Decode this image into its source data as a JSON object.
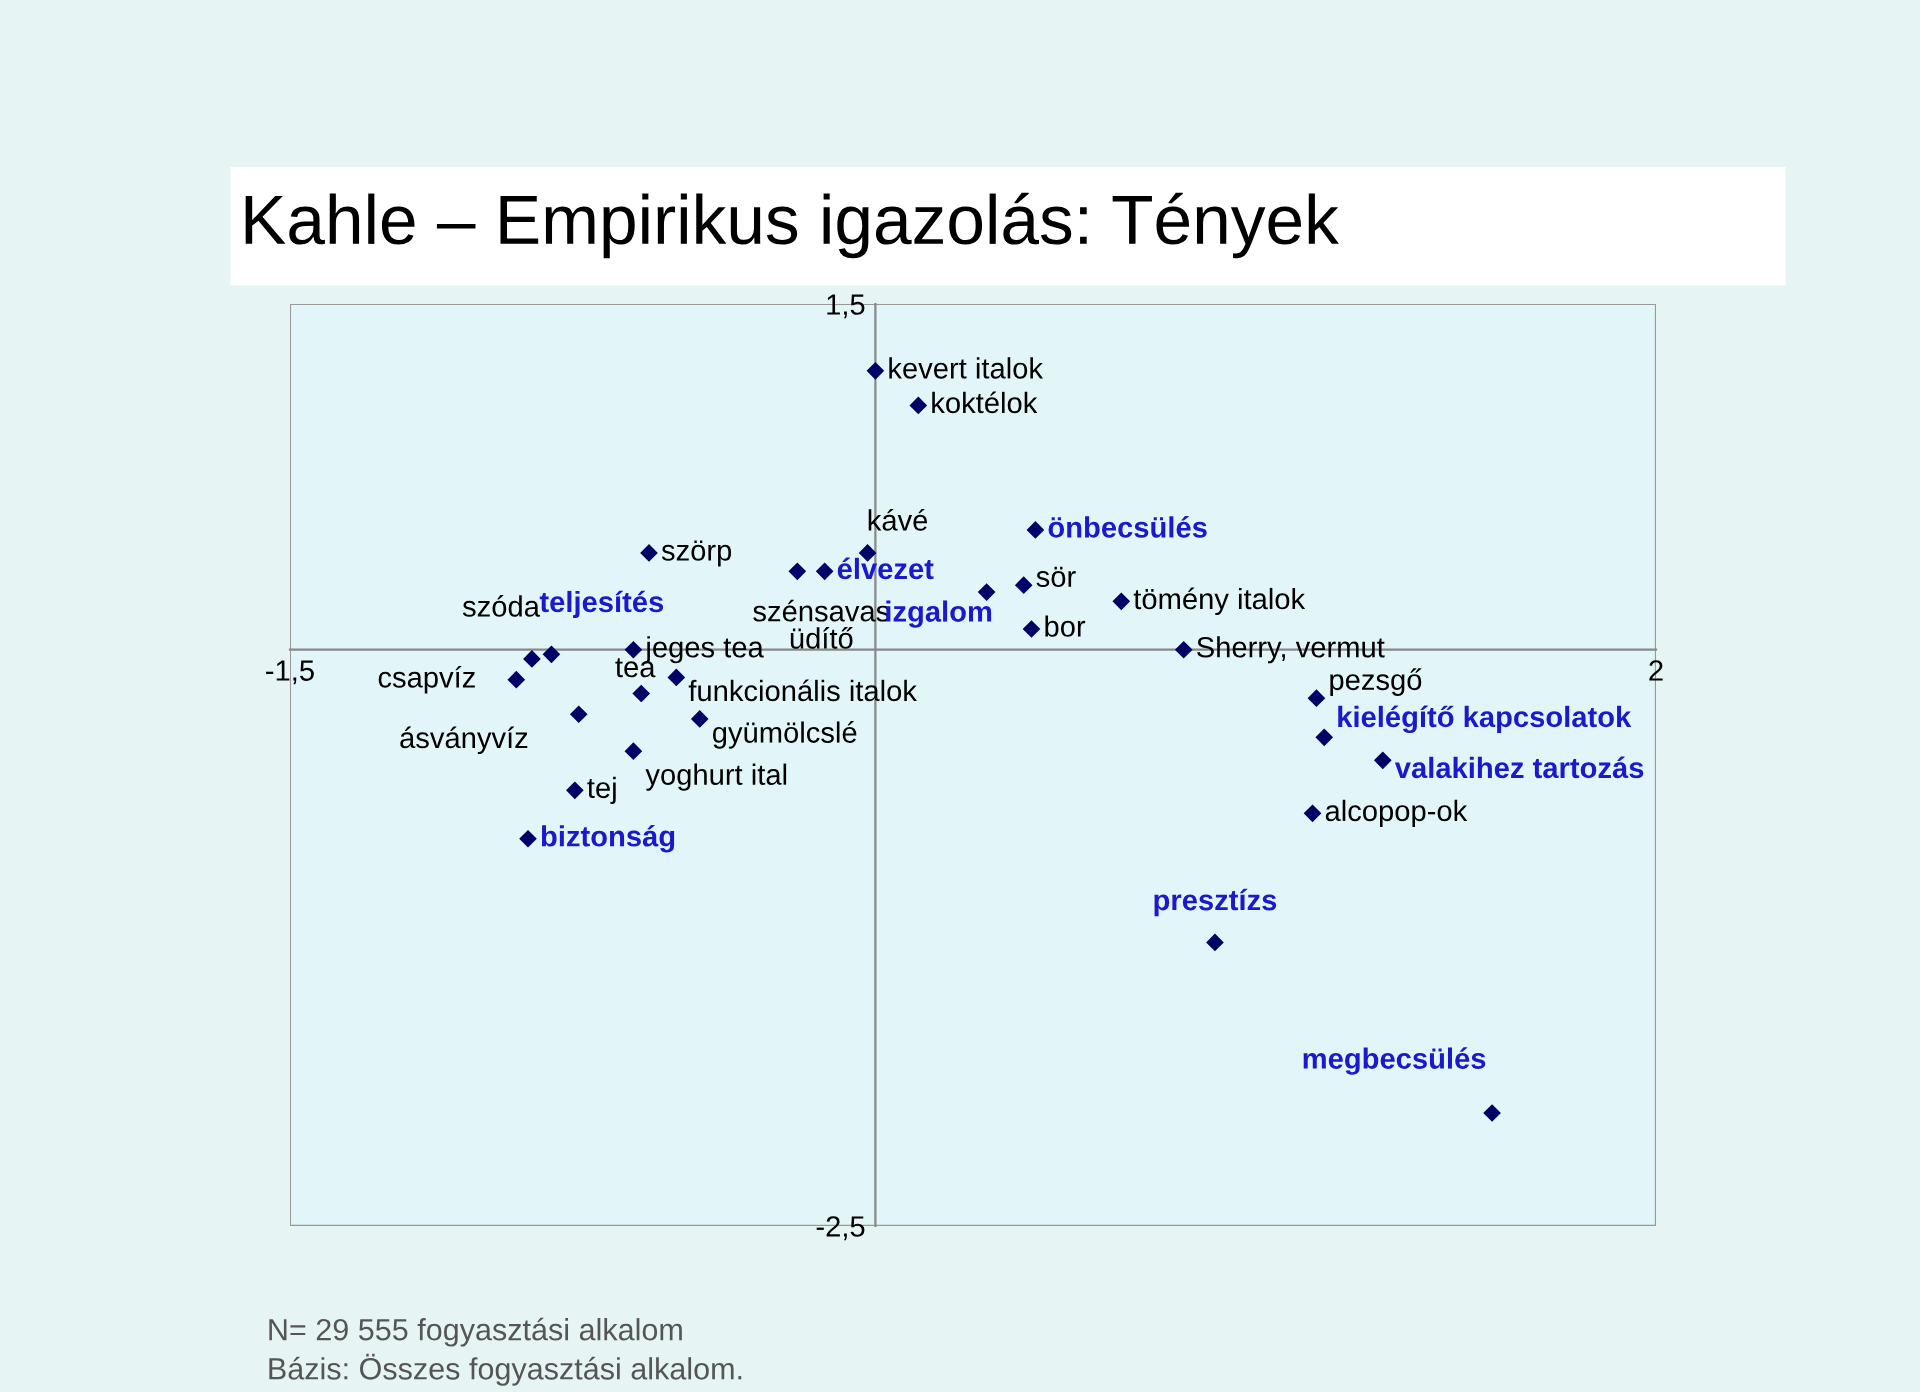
{
  "chart_data": {
    "type": "scatter",
    "title": "Kahle – Empirikus igazolás: Tények",
    "xlim": [
      -1.5,
      2
    ],
    "ylim": [
      -2.5,
      1.5
    ],
    "xticks": [
      {
        "value": -1.5,
        "label": "-1,5"
      },
      {
        "value": 2,
        "label": "2"
      }
    ],
    "yticks": [
      {
        "value": 1.5,
        "label": "1,5"
      },
      {
        "value": -2.5,
        "label": "-2,5"
      }
    ],
    "grid": false,
    "marker": "diamond",
    "series": [
      {
        "color": "#000066",
        "x": [
          0.0,
          0.11,
          -0.02,
          -0.58,
          -0.2,
          -0.62,
          -0.6,
          -0.51,
          -0.92,
          -0.76,
          -0.45,
          -0.62,
          -0.77,
          -0.88,
          0.4,
          0.38,
          0.63,
          0.79,
          1.13,
          1.12
        ],
        "values": [
          1.21,
          1.06,
          0.42,
          0.42,
          0.34,
          0.0,
          -0.19,
          -0.12,
          -0.13,
          -0.28,
          -0.3,
          -0.44,
          -0.61,
          -0.04,
          0.09,
          0.28,
          0.21,
          0.0,
          -0.21,
          -0.71
        ]
      },
      {
        "color": "#000066",
        "x": [
          -0.13,
          0.285,
          -0.83,
          0.41,
          -0.89,
          1.15,
          1.3,
          0.87,
          1.58
        ],
        "values": [
          0.34,
          0.25,
          -0.02,
          0.52,
          -0.82,
          -0.38,
          -0.48,
          -1.27,
          -2.01
        ]
      }
    ],
    "annotations": [
      {
        "text": "kevert italok",
        "x": 0.0,
        "y": 1.21
      },
      {
        "text": "koktélok",
        "x": 0.11,
        "y": 1.06
      },
      {
        "text": "kávé",
        "x": -0.02,
        "y": 0.42
      },
      {
        "text": "szörp",
        "x": -0.58,
        "y": 0.42
      },
      {
        "text": "szénsavas üdítő",
        "x": -0.2,
        "y": 0.34
      },
      {
        "text": "jeges tea",
        "x": -0.62,
        "y": 0.0
      },
      {
        "text": "tea",
        "x": -0.6,
        "y": -0.19
      },
      {
        "text": "funkcionális italok",
        "x": -0.51,
        "y": -0.12
      },
      {
        "text": "csapvíz",
        "x": -0.92,
        "y": -0.13
      },
      {
        "text": "ásványvíz",
        "x": -0.76,
        "y": -0.28
      },
      {
        "text": "gyümölcslé",
        "x": -0.45,
        "y": -0.3
      },
      {
        "text": "yoghurt ital",
        "x": -0.62,
        "y": -0.44
      },
      {
        "text": "tej",
        "x": -0.77,
        "y": -0.61
      },
      {
        "text": "szóda",
        "x": -0.88,
        "y": -0.04
      },
      {
        "text": "bor",
        "x": 0.4,
        "y": 0.09
      },
      {
        "text": "sör",
        "x": 0.38,
        "y": 0.28
      },
      {
        "text": "tömény italok",
        "x": 0.63,
        "y": 0.21
      },
      {
        "text": "Sherry, vermut",
        "x": 0.79,
        "y": 0.0
      },
      {
        "text": "pezsgő",
        "x": 1.13,
        "y": -0.21
      },
      {
        "text": "alcopop-ok",
        "x": 1.12,
        "y": -0.71
      },
      {
        "text": "élvezet",
        "x": -0.13,
        "y": 0.34
      },
      {
        "text": "izgalom",
        "x": 0.285,
        "y": 0.25
      },
      {
        "text": "teljesítés",
        "x": -0.83,
        "y": -0.02
      },
      {
        "text": "önbecsülés",
        "x": 0.41,
        "y": 0.52
      },
      {
        "text": "biztonság",
        "x": -0.89,
        "y": -0.82
      },
      {
        "text": "kielégítő kapcsolatok",
        "x": 1.15,
        "y": -0.38
      },
      {
        "text": "valakihez tartozás",
        "x": 1.3,
        "y": -0.48
      },
      {
        "text": "presztízs",
        "x": 0.87,
        "y": -1.27
      },
      {
        "text": "megbecsülés",
        "x": 1.58,
        "y": -2.01
      },
      "N= 29 555 fogyasztási alkalom",
      "Bázis: Összes fogyasztási alkalom."
    ]
  }
}
